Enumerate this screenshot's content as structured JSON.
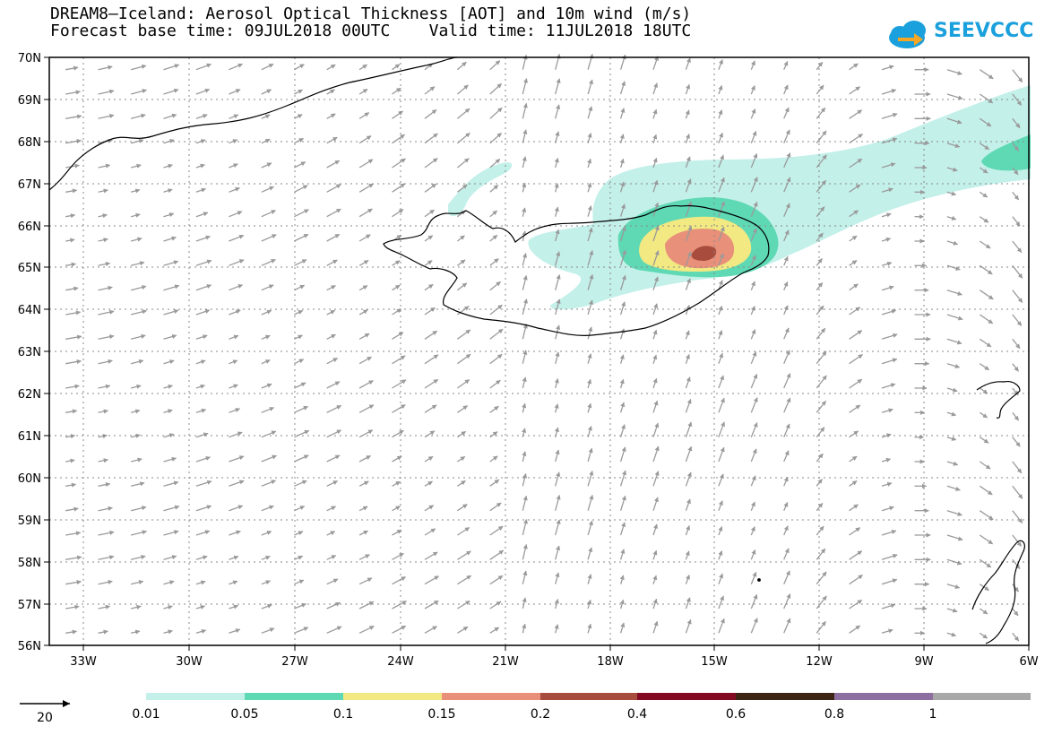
{
  "header": {
    "title_line1": "DREAM8–Iceland: Aerosol Optical Thickness [AOT] and 10m wind (m/s)",
    "title_line2": "Forecast base time: 09JUL2018 00UTC    Valid time: 11JUL2018 18UTC"
  },
  "logo": {
    "text": "SEEVCCC",
    "icon": "cloud-arrow-icon",
    "color": "#1aa0dc"
  },
  "map": {
    "lon_ticks": [
      "33W",
      "30W",
      "27W",
      "24W",
      "21W",
      "18W",
      "15W",
      "12W",
      "9W",
      "6W"
    ],
    "lat_ticks": [
      "70N",
      "69N",
      "68N",
      "67N",
      "66N",
      "65N",
      "64N",
      "63N",
      "62N",
      "61N",
      "60N",
      "59N",
      "58N",
      "57N",
      "56N"
    ],
    "wind_vector_color": "#9a9a9a",
    "coastline_color": "#000000"
  },
  "legend": {
    "reference_vector_label": "20",
    "colorbar_labels": [
      "0.01",
      "0.05",
      "0.1",
      "0.15",
      "0.2",
      "0.4",
      "0.6",
      "0.8",
      "1"
    ],
    "colorbar_colors": [
      "#c4f0ea",
      "#5ed9b4",
      "#f2e982",
      "#e8907a",
      "#a84c3e",
      "#820a23",
      "#3d2414",
      "#8c6ea0",
      "#a8a8a8"
    ]
  },
  "aot_colors": {
    "c001": "#c4f0ea",
    "c005": "#5ed9b4",
    "c01": "#f2e982",
    "c015": "#e8907a",
    "c02": "#a84c3e"
  }
}
